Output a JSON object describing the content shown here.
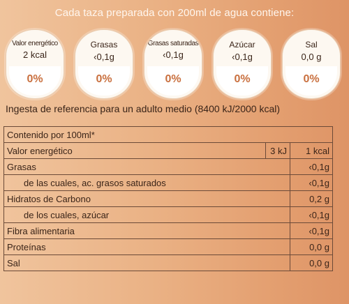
{
  "headline": "Cada taza preparada con 200ml de agua contiene:",
  "gda": [
    {
      "label": "Valor energético",
      "amount": "2 kcal",
      "percent": "0%"
    },
    {
      "label": "Grasas",
      "amount": "‹0,1g",
      "percent": "0%"
    },
    {
      "label": "Grasas saturadas",
      "amount": "‹0,1g",
      "percent": "0%"
    },
    {
      "label": "Azúcar",
      "amount": "‹0,1g",
      "percent": "0%"
    },
    {
      "label": "Sal",
      "amount": "0,0 g",
      "percent": "0%"
    }
  ],
  "reference_note": "Ingesta de referencia para un adulto medio (8400 kJ/2000 kcal)",
  "table": {
    "header": "Contenido por 100ml*",
    "energy": {
      "name": "Valor energético",
      "kj": "3 kJ",
      "kcal": "1 kcal"
    },
    "rows": [
      {
        "name": "Grasas",
        "value": "‹0,1g",
        "sub": false
      },
      {
        "name": "de las cuales, ac. grasos saturados",
        "value": "‹0,1g",
        "sub": true
      },
      {
        "name": "Hidratos de Carbono",
        "value": "0,2 g",
        "sub": false
      },
      {
        "name": "de los cuales, azúcar",
        "value": "‹0,1g",
        "sub": true
      },
      {
        "name": "Fibra alimentaria",
        "value": "‹0,1g",
        "sub": false
      },
      {
        "name": "Proteínas",
        "value": "0,0 g",
        "sub": false
      },
      {
        "name": "Sal",
        "value": "0,0 g",
        "sub": false
      }
    ]
  },
  "colors": {
    "percent": "#c9703f",
    "background": "#eab184",
    "text": "#3a2418"
  }
}
